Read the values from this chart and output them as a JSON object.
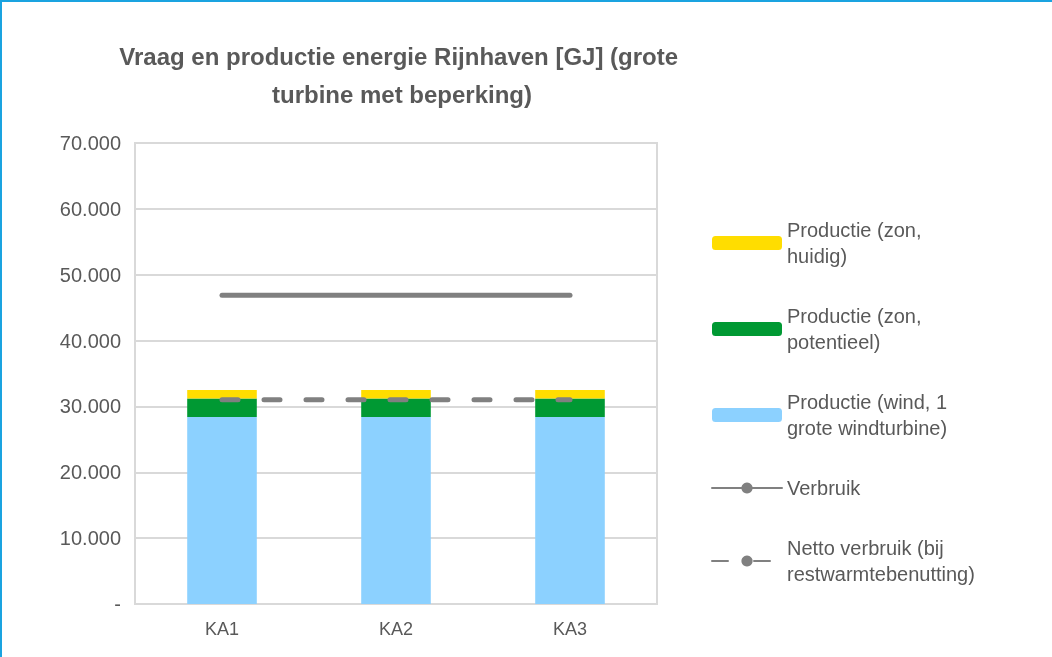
{
  "chart_data": {
    "type": "bar",
    "title": "Vraag en productie energie Rijnhaven [GJ] (grote turbine met beperking)",
    "categories": [
      "KA1",
      "KA2",
      "KA3"
    ],
    "stacked": true,
    "series": [
      {
        "name": "Productie (wind, 1 grote windturbine)",
        "color": "#8cd1ff",
        "values": [
          28400,
          28400,
          28400
        ]
      },
      {
        "name": "Productie (zon, potentieel)",
        "color": "#009933",
        "values": [
          2800,
          2800,
          2800
        ]
      },
      {
        "name": "Productie (zon, huidig)",
        "color": "#ffdd00",
        "values": [
          1300,
          1300,
          1300
        ]
      },
      {
        "name": "Verbruik",
        "type": "line",
        "color": "#808080",
        "line_style": "solid",
        "values": [
          46900,
          46900,
          46900
        ]
      },
      {
        "name": "Netto verbruik (bij restwarmtebenutting)",
        "type": "line",
        "color": "#808080",
        "line_style": "dashed",
        "values": [
          31000,
          31000,
          31000
        ]
      }
    ],
    "ylim": [
      0,
      70000
    ],
    "yticks": [
      {
        "value": 0,
        "label": "-"
      },
      {
        "value": 10000,
        "label": "10.000"
      },
      {
        "value": 20000,
        "label": "20.000"
      },
      {
        "value": 30000,
        "label": "30.000"
      },
      {
        "value": 40000,
        "label": "40.000"
      },
      {
        "value": 50000,
        "label": "50.000"
      },
      {
        "value": 60000,
        "label": "60.000"
      },
      {
        "value": 70000,
        "label": "70.000"
      }
    ],
    "grid": "y",
    "legend": "right",
    "marker": "none"
  }
}
